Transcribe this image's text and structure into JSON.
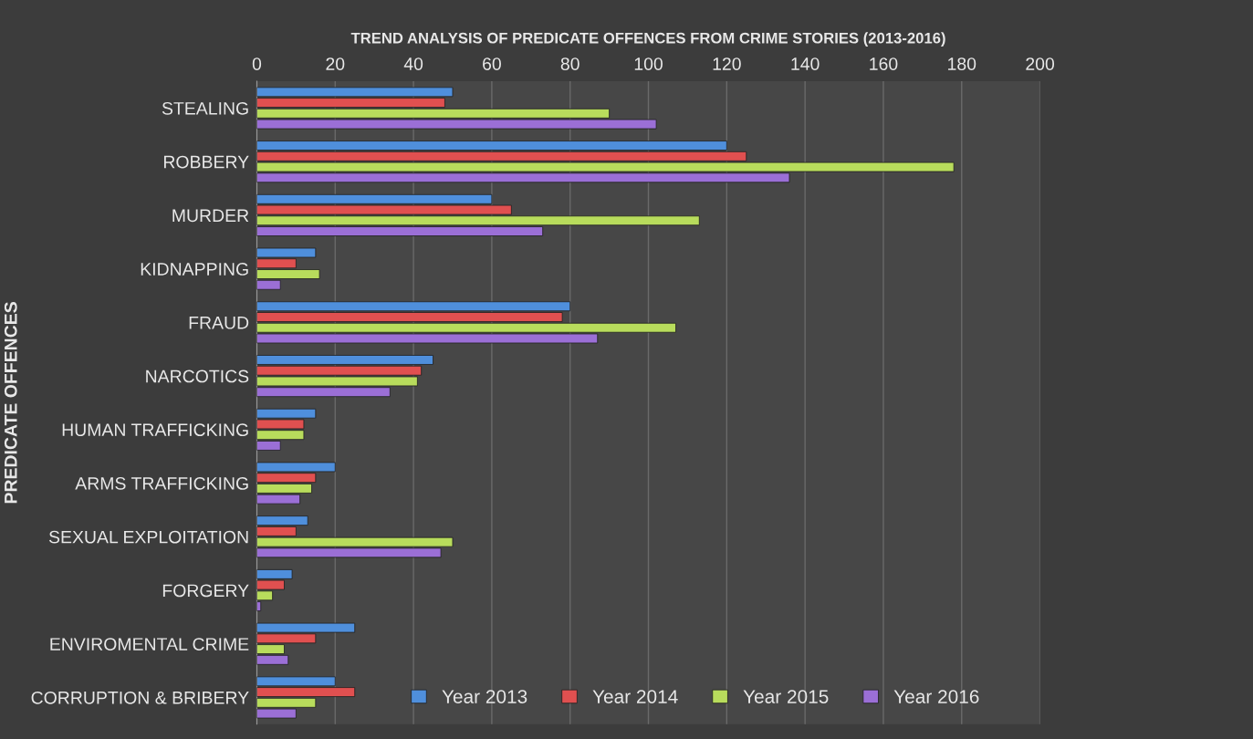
{
  "chart_data": {
    "type": "bar",
    "orientation": "horizontal",
    "title": "TREND ANALYSIS OF PREDICATE OFFENCES FROM CRIME STORIES (2013-2016)",
    "ylabel": "PREDICATE OFFENCES",
    "categories": [
      "STEALING",
      "ROBBERY",
      "MURDER",
      "KIDNAPPING",
      "FRAUD",
      "NARCOTICS",
      "HUMAN TRAFFICKING",
      "ARMS TRAFFICKING",
      "SEXUAL EXPLOITATION",
      "FORGERY",
      "ENVIROMENTAL CRIME",
      "CORRUPTION & BRIBERY"
    ],
    "series": [
      {
        "name": "Year 2013",
        "color": "#4f8fdc",
        "values": [
          50,
          120,
          60,
          15,
          80,
          45,
          15,
          20,
          13,
          9,
          25,
          20
        ]
      },
      {
        "name": "Year 2014",
        "color": "#e05050",
        "values": [
          48,
          125,
          65,
          10,
          78,
          42,
          12,
          15,
          10,
          7,
          15,
          25
        ]
      },
      {
        "name": "Year 2015",
        "color": "#b8dc5c",
        "values": [
          90,
          178,
          113,
          16,
          107,
          41,
          12,
          14,
          50,
          4,
          7,
          15
        ]
      },
      {
        "name": "Year 2016",
        "color": "#9b6fd6",
        "values": [
          102,
          136,
          73,
          6,
          87,
          34,
          6,
          11,
          47,
          1,
          8,
          10
        ]
      }
    ],
    "xlim": [
      0,
      200
    ],
    "xticks": [
      0,
      20,
      40,
      60,
      80,
      100,
      120,
      140,
      160,
      180,
      200
    ],
    "grid": "x",
    "legend": "bottom"
  }
}
